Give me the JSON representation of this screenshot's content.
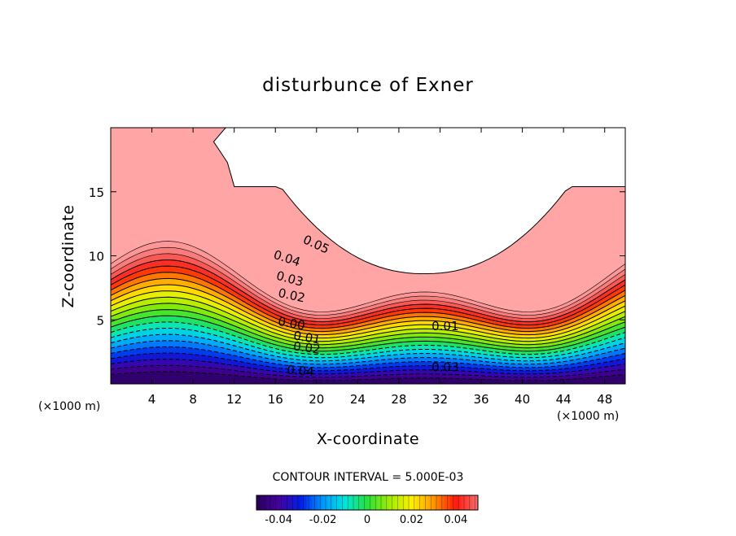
{
  "chart_data": {
    "type": "contour",
    "title": "disturbunce of Exner",
    "xlabel": "X-coordinate",
    "ylabel": "Z-coordinate",
    "x_unit": "(×1000 m)",
    "x_unit_right": "(×1000 m)",
    "x_ticks": [
      "4",
      "8",
      "12",
      "16",
      "20",
      "24",
      "28",
      "32",
      "36",
      "40",
      "44",
      "48"
    ],
    "x_tick_values": [
      4,
      8,
      12,
      16,
      20,
      24,
      28,
      32,
      36,
      40,
      44,
      48
    ],
    "y_ticks": [
      "5",
      "10",
      "15"
    ],
    "y_tick_values": [
      5,
      10,
      15
    ],
    "xlim": [
      0,
      50
    ],
    "ylim": [
      0,
      20
    ],
    "contour_interval_text": "CONTOUR INTERVAL = 5.000E-03",
    "contour_interval": 0.005,
    "levels_range": [
      -0.045,
      0.06
    ],
    "contour_labels": [
      {
        "text": "0.05",
        "x": 19.8,
        "z": 10.6,
        "angle": 25
      },
      {
        "text": "0.04",
        "x": 17.0,
        "z": 9.5,
        "angle": 18
      },
      {
        "text": "0.03",
        "x": 17.3,
        "z": 7.9,
        "angle": 15
      },
      {
        "text": "0.02",
        "x": 17.5,
        "z": 6.6,
        "angle": 12
      },
      {
        "text": "0.00",
        "x": 17.5,
        "z": 4.4,
        "angle": 10
      },
      {
        "text": "0.01",
        "x": 19.0,
        "z": 3.3,
        "angle": 10
      },
      {
        "text": "0.02",
        "x": 19.0,
        "z": 2.5,
        "angle": 8
      },
      {
        "text": "0.04",
        "x": 18.4,
        "z": 0.7,
        "angle": 5
      },
      {
        "text": "0.01",
        "x": 32.5,
        "z": 4.2,
        "angle": 0
      },
      {
        "text": "0.03",
        "x": 32.5,
        "z": 1.0,
        "angle": 0
      }
    ],
    "colorbar": {
      "ticks": [
        "-0.04",
        "-0.02",
        "0",
        "0.02",
        "0.04"
      ],
      "tick_values": [
        -0.04,
        -0.02,
        0,
        0.02,
        0.04
      ],
      "range": [
        -0.05,
        0.05
      ]
    }
  }
}
